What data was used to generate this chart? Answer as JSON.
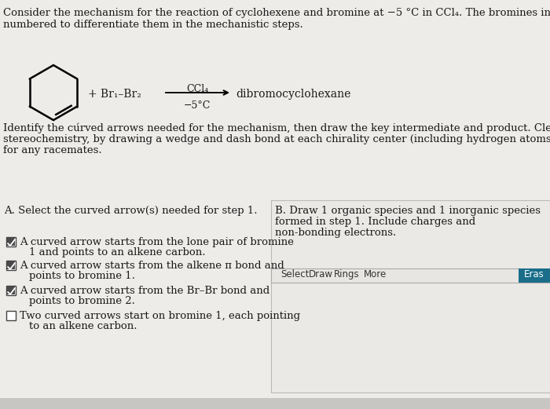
{
  "bg_color": "#eeece9",
  "panel_bg": "#edecea",
  "panel_b_bg": "#edecea",
  "title_line1": "Consider the mechanism for the reaction of cyclohexene and bromine at −5 °C in CCl₄. The bromines in the equation are",
  "title_line2": "numbered to differentiate them in the mechanistic steps.",
  "reaction_reactant": "+ Br₁–Br₂",
  "reaction_ccl4": "CCl₄",
  "reaction_temp": "−5°C",
  "reaction_product": "dibromocyclohexane",
  "para_line1": "Identify the cúrved arrows needed for the mechanism, then draw the key intermediate and product. Clearly show",
  "para_line2": "stereochemistry, by drawing a wedge and dash bond at each chirality center (including hydrogen atoms). Draw one enantio",
  "para_line3": "for any racemates.",
  "sec_a_title": "A. Select the curved arrow(s) needed for step 1.",
  "sec_b_line1": "B. Draw 1 organic species and 1 inorganic species",
  "sec_b_line2": "formed in step 1. Include charges and",
  "sec_b_line3": "non-bonding electrons.",
  "checkbox_items": [
    {
      "checked": true,
      "line1": "A curved arrow starts from the lone pair of bromine",
      "line2": "1 and points to an alkene carbon."
    },
    {
      "checked": true,
      "line1": "A curved arrow starts from the alkene π bond and",
      "line2": "points to bromine 1."
    },
    {
      "checked": true,
      "line1": "A curved arrow starts from the Br–Br bond and",
      "line2": "points to bromine 2."
    },
    {
      "checked": false,
      "line1": "Two curved arrows start on bromine 1, each pointing",
      "line2": "to an alkene carbon."
    }
  ],
  "toolbar_labels": [
    "Select",
    "Draw",
    "Rings",
    "More"
  ],
  "erase_label": "Eras",
  "erase_bg": "#1a6e8a",
  "toolbar_bg": "#e8e6e3",
  "toolbar_border": "#aaaaaa",
  "panel_border": "#bbbbbb",
  "check_bg": "#4a4a4a",
  "check_mark_color": "#ffffff",
  "text_color": "#1a1a1a",
  "font_size": 9.5
}
